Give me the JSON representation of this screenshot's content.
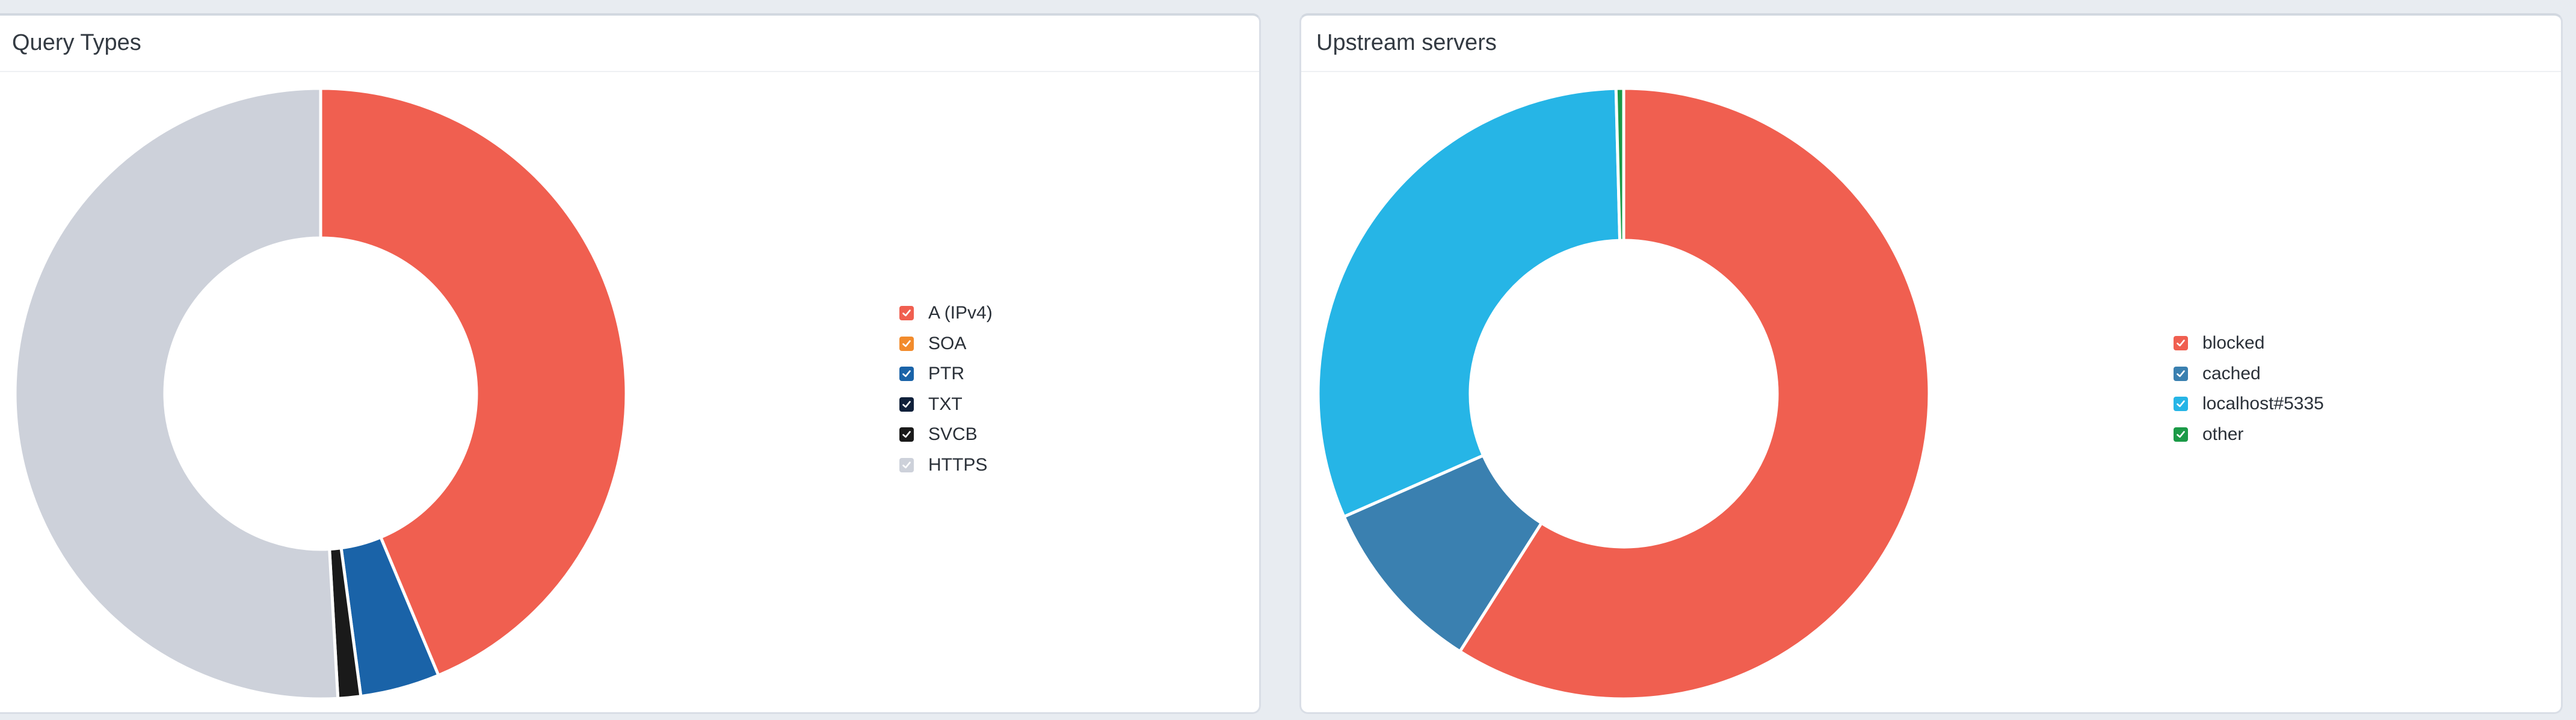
{
  "panels": [
    {
      "title": "Query Types"
    },
    {
      "title": "Upstream servers"
    }
  ],
  "chart_data": [
    {
      "type": "pie",
      "title": "Query Types",
      "labels": [
        "A (IPv4)",
        "SOA",
        "PTR",
        "TXT",
        "SVCB",
        "HTTPS"
      ],
      "values": [
        43.7,
        0,
        4.2,
        0,
        1.2,
        50.9
      ],
      "colors": [
        "#f05f50",
        "#f28b2c",
        "#1a63a8",
        "#10203a",
        "#1a1a1a",
        "#cdd1da"
      ],
      "legend_position": "right"
    },
    {
      "type": "pie",
      "title": "Upstream servers",
      "labels": [
        "blocked",
        "cached",
        "localhost#5335",
        "other"
      ],
      "values": [
        59.0,
        9.4,
        31.2,
        0.4
      ],
      "colors": [
        "#f05f50",
        "#3a80b0",
        "#26b5e6",
        "#1b9a47"
      ],
      "legend_position": "right"
    }
  ]
}
